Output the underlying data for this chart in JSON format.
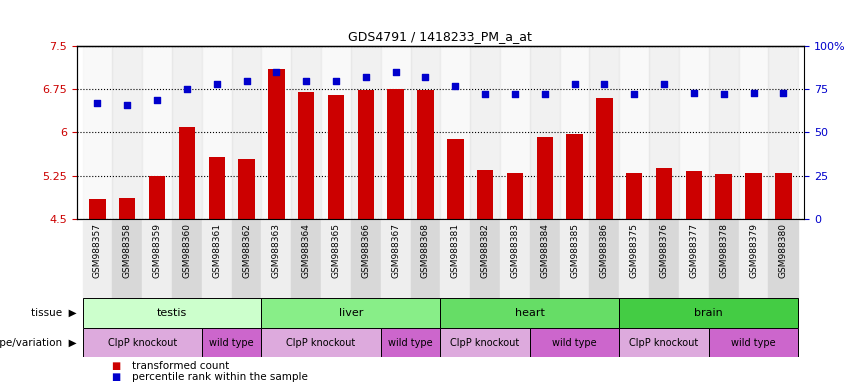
{
  "title": "GDS4791 / 1418233_PM_a_at",
  "samples": [
    "GSM988357",
    "GSM988358",
    "GSM988359",
    "GSM988360",
    "GSM988361",
    "GSM988362",
    "GSM988363",
    "GSM988364",
    "GSM988365",
    "GSM988366",
    "GSM988367",
    "GSM988368",
    "GSM988381",
    "GSM988382",
    "GSM988383",
    "GSM988384",
    "GSM988385",
    "GSM988386",
    "GSM988375",
    "GSM988376",
    "GSM988377",
    "GSM988378",
    "GSM988379",
    "GSM988380"
  ],
  "bar_values": [
    4.85,
    4.87,
    5.25,
    6.1,
    5.58,
    5.54,
    7.1,
    6.7,
    6.65,
    6.74,
    6.76,
    6.73,
    5.88,
    5.35,
    5.3,
    5.92,
    5.98,
    6.6,
    5.3,
    5.38,
    5.33,
    5.28,
    5.3,
    5.3
  ],
  "dot_values": [
    67,
    66,
    69,
    75,
    78,
    80,
    85,
    80,
    80,
    82,
    85,
    82,
    77,
    72,
    72,
    72,
    78,
    78,
    72,
    78,
    73,
    72,
    73,
    73
  ],
  "ylim_left": [
    4.5,
    7.5
  ],
  "ylim_right": [
    0,
    100
  ],
  "yticks_left": [
    4.5,
    5.25,
    6.0,
    6.75,
    7.5
  ],
  "yticks_right": [
    0,
    25,
    50,
    75,
    100
  ],
  "ytick_labels_left": [
    "4.5",
    "5.25",
    "6",
    "6.75",
    "7.5"
  ],
  "ytick_labels_right": [
    "0",
    "25",
    "50",
    "75",
    "100%"
  ],
  "bar_color": "#cc0000",
  "dot_color": "#0000cc",
  "bar_bottom": 4.5,
  "tissues": [
    {
      "label": "testis",
      "start": 0,
      "end": 6,
      "color": "#ccffcc"
    },
    {
      "label": "liver",
      "start": 6,
      "end": 12,
      "color": "#88ee88"
    },
    {
      "label": "heart",
      "start": 12,
      "end": 18,
      "color": "#66dd66"
    },
    {
      "label": "brain",
      "start": 18,
      "end": 24,
      "color": "#44cc44"
    }
  ],
  "genotypes": [
    {
      "label": "ClpP knockout",
      "start": 0,
      "end": 4,
      "color": "#ddaadd"
    },
    {
      "label": "wild type",
      "start": 4,
      "end": 6,
      "color": "#cc66cc"
    },
    {
      "label": "ClpP knockout",
      "start": 6,
      "end": 10,
      "color": "#ddaadd"
    },
    {
      "label": "wild type",
      "start": 10,
      "end": 12,
      "color": "#cc66cc"
    },
    {
      "label": "ClpP knockout",
      "start": 12,
      "end": 15,
      "color": "#ddaadd"
    },
    {
      "label": "wild type",
      "start": 15,
      "end": 18,
      "color": "#cc66cc"
    },
    {
      "label": "ClpP knockout",
      "start": 18,
      "end": 21,
      "color": "#ddaadd"
    },
    {
      "label": "wild type",
      "start": 21,
      "end": 24,
      "color": "#cc66cc"
    }
  ],
  "legend_items": [
    {
      "label": "transformed count",
      "color": "#cc0000"
    },
    {
      "label": "percentile rank within the sample",
      "color": "#0000cc"
    }
  ],
  "tissue_label": "tissue",
  "genotype_label": "genotype/variation"
}
